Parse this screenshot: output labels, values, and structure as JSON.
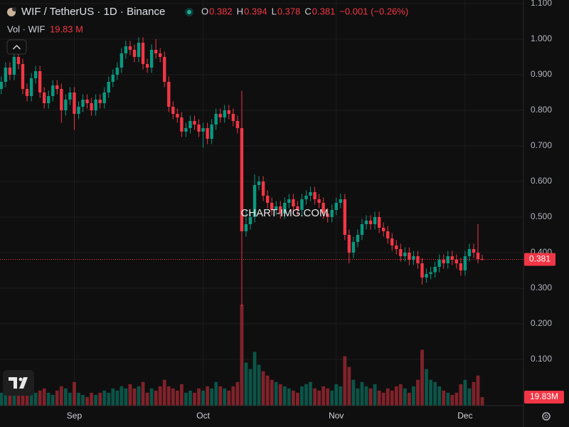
{
  "chart_data": {
    "type": "candlestick",
    "title": "WIF / TetherUS · 1D · Binance",
    "ohlc_labels": [
      "O",
      "H",
      "L",
      "C"
    ],
    "change_label": "−0.001 (−0.26%)",
    "volume_title": "Vol · WIF",
    "volume_header_label": "19.83 M",
    "volume_value_label": "19.83M",
    "watermark": "CHART-IMG.COM",
    "up_color": "#089981",
    "down_color": "#f23645",
    "open": [
      0.86,
      0.88,
      0.92,
      0.9,
      0.95,
      0.93,
      0.86,
      0.84,
      0.89,
      0.91,
      0.85,
      0.82,
      0.84,
      0.87,
      0.86,
      0.8,
      0.83,
      0.85,
      0.79,
      0.81,
      0.83,
      0.82,
      0.8,
      0.83,
      0.82,
      0.85,
      0.88,
      0.9,
      0.92,
      0.96,
      0.98,
      0.97,
      0.95,
      0.99,
      0.93,
      0.92,
      0.97,
      0.96,
      0.95,
      0.88,
      0.81,
      0.79,
      0.78,
      0.74,
      0.75,
      0.77,
      0.76,
      0.74,
      0.75,
      0.72,
      0.76,
      0.79,
      0.78,
      0.8,
      0.79,
      0.77,
      0.75,
      0.46,
      0.48,
      0.5,
      0.59,
      0.6,
      0.56,
      0.54,
      0.52,
      0.53,
      0.51,
      0.54,
      0.55,
      0.53,
      0.52,
      0.55,
      0.56,
      0.57,
      0.55,
      0.54,
      0.51,
      0.5,
      0.52,
      0.54,
      0.55,
      0.45,
      0.4,
      0.43,
      0.45,
      0.48,
      0.49,
      0.48,
      0.5,
      0.47,
      0.46,
      0.44,
      0.42,
      0.41,
      0.39,
      0.4,
      0.38,
      0.39,
      0.37,
      0.33,
      0.34,
      0.345,
      0.36,
      0.38,
      0.37,
      0.39,
      0.38,
      0.37,
      0.35,
      0.39,
      0.41,
      0.4,
      0.382
    ],
    "high": [
      0.895,
      0.935,
      0.935,
      0.965,
      0.965,
      0.945,
      0.875,
      0.905,
      0.925,
      0.925,
      0.865,
      0.855,
      0.885,
      0.885,
      0.875,
      0.845,
      0.865,
      0.865,
      0.825,
      0.845,
      0.845,
      0.835,
      0.845,
      0.845,
      0.865,
      0.895,
      0.915,
      0.935,
      0.975,
      0.995,
      0.995,
      0.985,
      1.005,
      1.005,
      0.945,
      0.985,
      1.0,
      0.975,
      0.965,
      0.895,
      0.825,
      0.805,
      0.795,
      0.765,
      0.785,
      0.785,
      0.775,
      0.765,
      0.765,
      0.775,
      0.805,
      0.805,
      0.815,
      0.815,
      0.805,
      0.785,
      0.855,
      0.52,
      0.515,
      0.62,
      0.615,
      0.615,
      0.575,
      0.555,
      0.545,
      0.545,
      0.555,
      0.565,
      0.565,
      0.545,
      0.565,
      0.575,
      0.585,
      0.585,
      0.565,
      0.555,
      0.525,
      0.535,
      0.555,
      0.565,
      0.565,
      0.465,
      0.445,
      0.465,
      0.495,
      0.505,
      0.505,
      0.515,
      0.515,
      0.485,
      0.475,
      0.455,
      0.435,
      0.425,
      0.415,
      0.415,
      0.405,
      0.405,
      0.385,
      0.355,
      0.36,
      0.375,
      0.395,
      0.395,
      0.405,
      0.405,
      0.395,
      0.385,
      0.405,
      0.425,
      0.425,
      0.48,
      0.394
    ],
    "low": [
      0.845,
      0.865,
      0.885,
      0.885,
      0.915,
      0.845,
      0.825,
      0.825,
      0.875,
      0.835,
      0.805,
      0.805,
      0.825,
      0.845,
      0.765,
      0.785,
      0.815,
      0.745,
      0.775,
      0.795,
      0.805,
      0.785,
      0.785,
      0.805,
      0.805,
      0.835,
      0.865,
      0.885,
      0.905,
      0.945,
      0.955,
      0.935,
      0.935,
      0.915,
      0.905,
      0.905,
      0.945,
      0.935,
      0.865,
      0.795,
      0.775,
      0.765,
      0.725,
      0.725,
      0.735,
      0.745,
      0.725,
      0.695,
      0.705,
      0.705,
      0.745,
      0.765,
      0.765,
      0.775,
      0.755,
      0.735,
      0.25,
      0.445,
      0.465,
      0.485,
      0.575,
      0.545,
      0.525,
      0.505,
      0.505,
      0.495,
      0.495,
      0.525,
      0.515,
      0.505,
      0.505,
      0.535,
      0.545,
      0.535,
      0.525,
      0.495,
      0.485,
      0.485,
      0.505,
      0.525,
      0.435,
      0.37,
      0.385,
      0.415,
      0.435,
      0.465,
      0.465,
      0.465,
      0.455,
      0.445,
      0.425,
      0.405,
      0.395,
      0.375,
      0.375,
      0.365,
      0.365,
      0.355,
      0.31,
      0.315,
      0.325,
      0.33,
      0.345,
      0.355,
      0.355,
      0.365,
      0.355,
      0.335,
      0.335,
      0.375,
      0.385,
      0.37,
      0.378
    ],
    "close": [
      0.88,
      0.92,
      0.9,
      0.95,
      0.93,
      0.86,
      0.84,
      0.89,
      0.91,
      0.85,
      0.82,
      0.84,
      0.87,
      0.86,
      0.8,
      0.83,
      0.85,
      0.79,
      0.81,
      0.83,
      0.82,
      0.8,
      0.83,
      0.82,
      0.85,
      0.88,
      0.9,
      0.92,
      0.96,
      0.98,
      0.97,
      0.95,
      0.99,
      0.93,
      0.92,
      0.97,
      0.96,
      0.95,
      0.88,
      0.81,
      0.79,
      0.78,
      0.74,
      0.75,
      0.77,
      0.76,
      0.74,
      0.75,
      0.72,
      0.76,
      0.79,
      0.78,
      0.8,
      0.79,
      0.77,
      0.75,
      0.46,
      0.48,
      0.5,
      0.59,
      0.6,
      0.56,
      0.54,
      0.52,
      0.53,
      0.51,
      0.54,
      0.55,
      0.53,
      0.52,
      0.55,
      0.56,
      0.57,
      0.55,
      0.54,
      0.51,
      0.5,
      0.52,
      0.54,
      0.55,
      0.45,
      0.4,
      0.43,
      0.45,
      0.48,
      0.49,
      0.48,
      0.5,
      0.47,
      0.46,
      0.44,
      0.42,
      0.41,
      0.39,
      0.4,
      0.38,
      0.39,
      0.37,
      0.33,
      0.34,
      0.345,
      0.36,
      0.38,
      0.37,
      0.39,
      0.38,
      0.37,
      0.35,
      0.39,
      0.41,
      0.4,
      0.382,
      0.381
    ],
    "volume": [
      30,
      40,
      25,
      30,
      45,
      50,
      40,
      45,
      30,
      35,
      40,
      30,
      25,
      35,
      45,
      40,
      30,
      55,
      30,
      25,
      20,
      30,
      25,
      30,
      35,
      30,
      40,
      35,
      45,
      40,
      50,
      40,
      45,
      55,
      30,
      40,
      35,
      45,
      60,
      45,
      40,
      35,
      50,
      30,
      35,
      30,
      40,
      35,
      45,
      40,
      55,
      45,
      40,
      35,
      45,
      55,
      235,
      100,
      85,
      125,
      95,
      80,
      70,
      60,
      55,
      50,
      45,
      40,
      35,
      30,
      45,
      50,
      55,
      40,
      35,
      45,
      40,
      35,
      50,
      45,
      115,
      90,
      60,
      40,
      55,
      45,
      40,
      50,
      35,
      30,
      40,
      35,
      45,
      50,
      40,
      30,
      45,
      60,
      130,
      85,
      60,
      55,
      45,
      35,
      30,
      25,
      30,
      50,
      60,
      40,
      55,
      70,
      19.83
    ],
    "xlim": [
      -0.3,
      121.6
    ],
    "xticks": [
      {
        "value": 17,
        "label": "Sep"
      },
      {
        "value": 47,
        "label": "Oct"
      },
      {
        "value": 78,
        "label": "Nov"
      },
      {
        "value": 108,
        "label": "Dec"
      }
    ],
    "ylim": [
      -0.03,
      1.11
    ],
    "yticks": [
      {
        "value": 0.1,
        "label": "0.100"
      },
      {
        "value": 0.2,
        "label": "0.200"
      },
      {
        "value": 0.3,
        "label": "0.300"
      },
      {
        "value": 0.4,
        "label": "0.400"
      },
      {
        "value": 0.5,
        "label": "0.500"
      },
      {
        "value": 0.6,
        "label": "0.600"
      },
      {
        "value": 0.7,
        "label": "0.700"
      },
      {
        "value": 0.8,
        "label": "0.800"
      },
      {
        "value": 0.9,
        "label": "0.900"
      },
      {
        "value": 1.0,
        "label": "1.000"
      },
      {
        "value": 1.1,
        "label": "1.100"
      }
    ],
    "grid": true
  }
}
